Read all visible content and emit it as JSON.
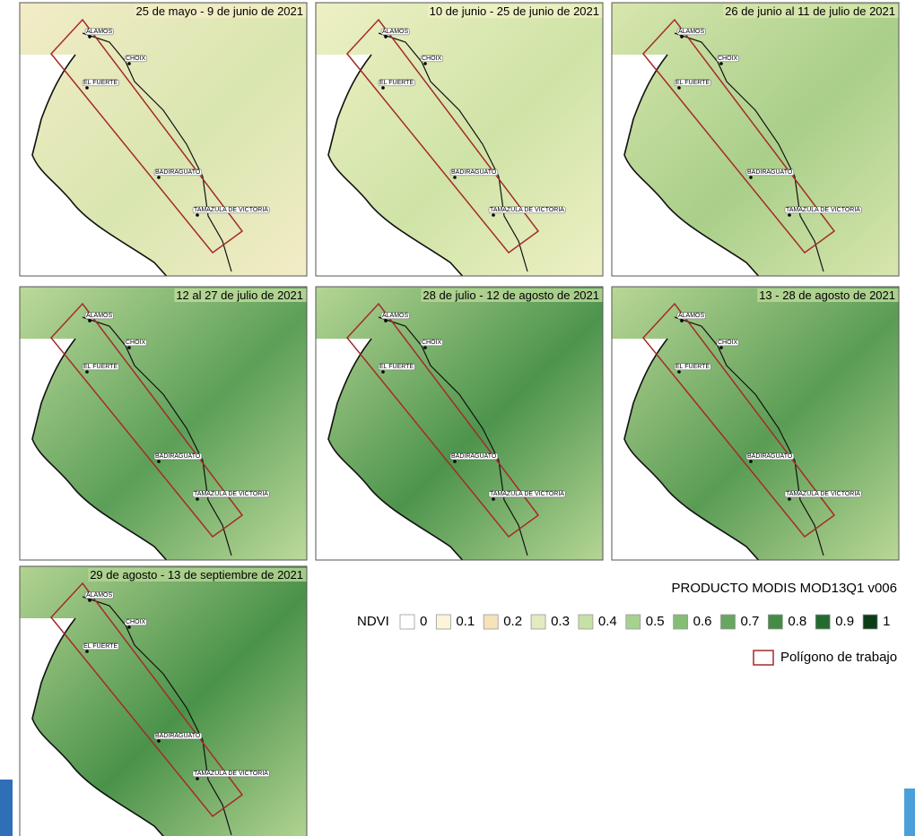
{
  "panels": [
    {
      "title": "25 de mayo - 9 de junio de 2021"
    },
    {
      "title": "10 de junio - 25 de junio de 2021"
    },
    {
      "title": "26 de junio al 11 de julio de 2021"
    },
    {
      "title": "12 al 27 de julio de 2021"
    },
    {
      "title": "28 de julio - 12 de agosto de 2021"
    },
    {
      "title": "13 - 28 de agosto de 2021"
    },
    {
      "title": "29 de agosto - 13 de septiembre de 2021"
    }
  ],
  "cities": [
    "ALAMOS",
    "CHOIX",
    "EL FUERTE",
    "BADIRAGUATO",
    "TAMAZULA DE VICTORIA"
  ],
  "legend": {
    "title": "PRODUCTO MODIS MOD13Q1 v006",
    "ndvi_label": "NDVI",
    "classes": [
      0,
      0.1,
      0.2,
      0.3,
      0.4,
      0.5,
      0.6,
      0.7,
      0.8,
      0.9,
      1
    ],
    "polygon_label": "Polígono de trabajo"
  }
}
